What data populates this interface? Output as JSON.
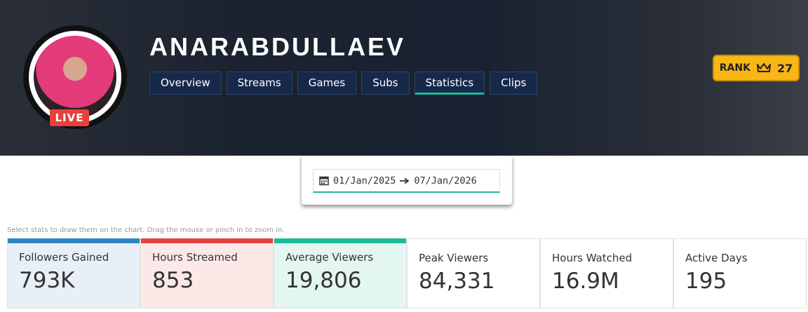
{
  "profile": {
    "name": "ANARABDULLAEV",
    "live_badge": "LIVE",
    "rank_label": "RANK",
    "rank": "27"
  },
  "tabs": [
    "Overview",
    "Streams",
    "Games",
    "Subs",
    "Statistics",
    "Clips"
  ],
  "active_tab": 4,
  "date_range": {
    "from": "01/Jan/2025",
    "to": "07/Jan/2026"
  },
  "hint": "Select stats to draw them on the chart. Drag the mouse or pinch in to zoom in.",
  "stats": [
    {
      "label": "Followers Gained",
      "value": "793K",
      "color": "#2e86c1",
      "bg": "#e8f0f7"
    },
    {
      "label": "Hours Streamed",
      "value": "853",
      "color": "#e8413c",
      "bg": "#fde8e8"
    },
    {
      "label": "Average Viewers",
      "value": "19,806",
      "color": "#1abc9c",
      "bg": "#e3f6f1"
    },
    {
      "label": "Peak Viewers",
      "value": "84,331"
    },
    {
      "label": "Hours Watched",
      "value": "16.9M"
    },
    {
      "label": "Active Days",
      "value": "195"
    }
  ]
}
